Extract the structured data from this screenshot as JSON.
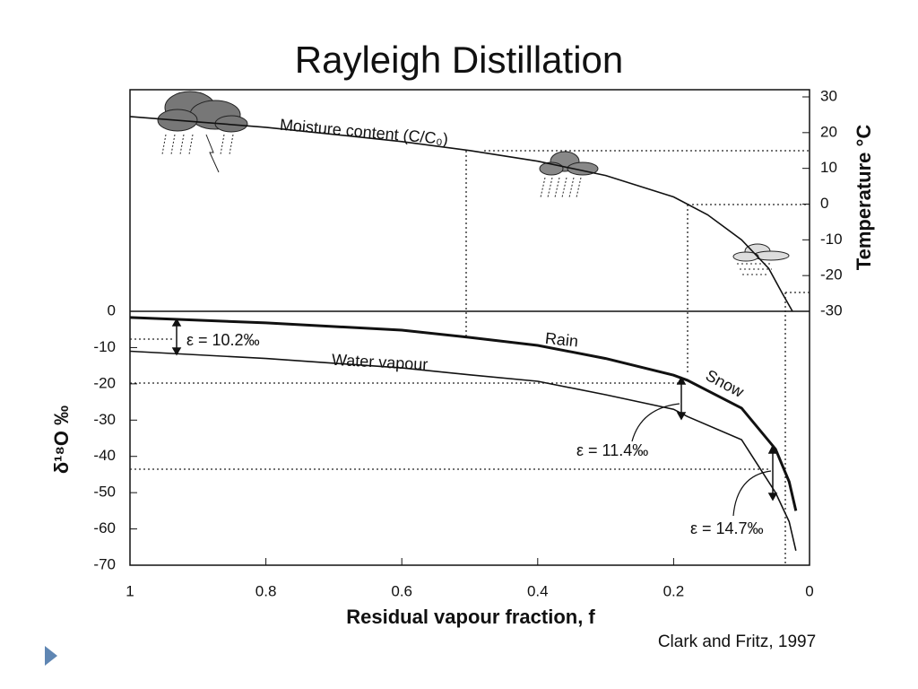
{
  "title": "Rayleigh Distillation",
  "source": "Clark and Fritz, 1997",
  "chart_data": [
    {
      "type": "line",
      "ylabel": "Temperature °C",
      "xlim": [
        1,
        0
      ],
      "ylim": [
        -30,
        30
      ],
      "yticks": [
        -30,
        -20,
        -10,
        0,
        10,
        20,
        30
      ],
      "x": [
        1,
        0.9,
        0.8,
        0.7,
        0.6,
        0.5,
        0.4,
        0.3,
        0.2,
        0.15,
        0.1,
        0.06,
        0.04,
        0.025
      ],
      "series": [
        {
          "name": "Moisture content (C/C₀)",
          "color": "#111111",
          "values": [
            24.5,
            23,
            21.5,
            19.5,
            17.5,
            15,
            12,
            8,
            2,
            -3,
            -10,
            -18,
            -25,
            -30
          ]
        }
      ]
    },
    {
      "type": "line",
      "xlabel": "Residual vapour fraction, f",
      "ylabel": "δ¹⁸O ‰",
      "xlim": [
        1,
        0
      ],
      "xticks": [
        1,
        0.8,
        0.6,
        0.4,
        0.2,
        0
      ],
      "ylim": [
        -70,
        0
      ],
      "yticks": [
        -70,
        -60,
        -50,
        -40,
        -30,
        -20,
        -10,
        0
      ],
      "x": [
        1,
        0.8,
        0.6,
        0.5,
        0.4,
        0.3,
        0.2,
        0.18,
        0.1,
        0.05,
        0.03,
        0.02
      ],
      "series": [
        {
          "name": "Rain",
          "color": "#111111",
          "values": [
            -1.7,
            -3.2,
            -5.2,
            -7.2,
            -9.4,
            -13,
            -17.6,
            -19,
            -26.7,
            -38,
            -47,
            -55
          ]
        },
        {
          "name": "Water vapour",
          "color": "#111111",
          "values": [
            -11,
            -13,
            -15.6,
            -17.5,
            -19.3,
            -23,
            -27,
            -29,
            -35.4,
            -50,
            -58,
            -66
          ]
        }
      ],
      "annotations": [
        "Snow",
        "ε = 10.2‰",
        "ε = 11.4‰",
        "ε = 14.7‰"
      ]
    }
  ]
}
